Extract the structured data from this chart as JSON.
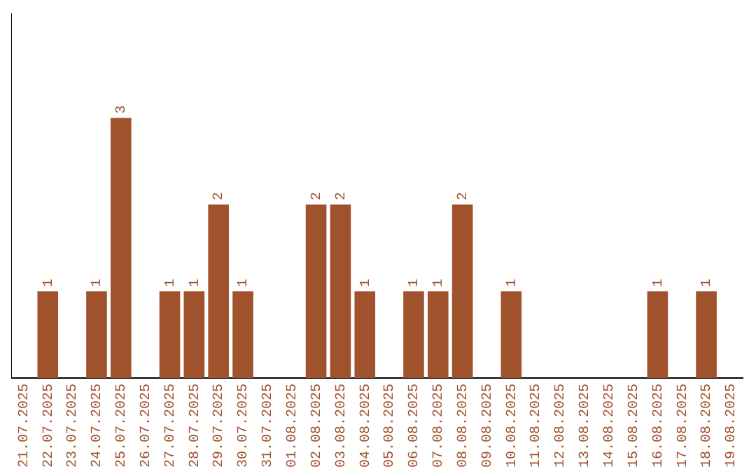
{
  "chart_data": {
    "type": "bar",
    "categories": [
      "21.07.2025",
      "22.07.2025",
      "23.07.2025",
      "24.07.2025",
      "25.07.2025",
      "26.07.2025",
      "27.07.2025",
      "28.07.2025",
      "29.07.2025",
      "30.07.2025",
      "31.07.2025",
      "01.08.2025",
      "02.08.2025",
      "03.08.2025",
      "04.08.2025",
      "05.08.2025",
      "06.08.2025",
      "07.08.2025",
      "08.08.2025",
      "09.08.2025",
      "10.08.2025",
      "11.08.2025",
      "12.08.2025",
      "13.08.2025",
      "14.08.2025",
      "15.08.2025",
      "16.08.2025",
      "17.08.2025",
      "18.08.2025",
      "19.08.2025"
    ],
    "values": [
      0,
      1,
      0,
      1,
      3,
      0,
      1,
      1,
      2,
      1,
      0,
      0,
      2,
      2,
      1,
      0,
      1,
      1,
      2,
      0,
      1,
      0,
      0,
      0,
      0,
      0,
      1,
      0,
      1,
      0
    ],
    "color": "#a0522d",
    "ylim": [
      0,
      4.2
    ],
    "tick_labels": "x",
    "value_labels": [
      null,
      "1",
      null,
      "1",
      "3",
      null,
      "1",
      "1",
      "2",
      "1",
      null,
      null,
      "2",
      "2",
      "1",
      null,
      "1",
      "1",
      "2",
      null,
      "1",
      null,
      null,
      null,
      null,
      null,
      "1",
      null,
      "1",
      null
    ],
    "grid": false,
    "legend": false
  }
}
